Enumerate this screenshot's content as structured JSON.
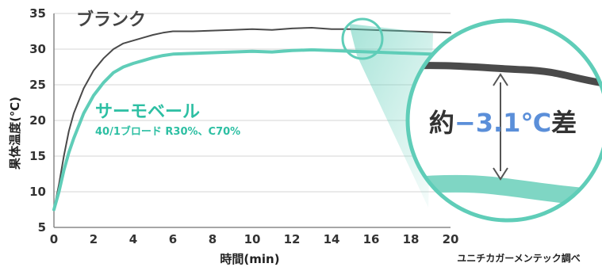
{
  "chart_data": {
    "type": "line",
    "xlabel": "時間(min)",
    "ylabel": "果体温度(℃)",
    "xlim": [
      0,
      20
    ],
    "ylim": [
      5,
      35
    ],
    "x_ticks": [
      "0",
      "2",
      "4",
      "6",
      "8",
      "10",
      "12",
      "14",
      "16",
      "18",
      "20"
    ],
    "y_ticks": [
      "5",
      "10",
      "15",
      "20",
      "25",
      "30",
      "35"
    ],
    "grid": true,
    "series": [
      {
        "name": "ブランク",
        "color": "#4a4a4a",
        "x": [
          0,
          0.25,
          0.5,
          0.75,
          1,
          1.5,
          2,
          2.5,
          3,
          3.5,
          4,
          4.5,
          5,
          5.5,
          6,
          7,
          8,
          9,
          10,
          11,
          12,
          13,
          14,
          15,
          16,
          17,
          18,
          19,
          20
        ],
        "values": [
          7.5,
          11,
          15,
          18.5,
          21,
          24.5,
          27,
          28.7,
          30,
          30.8,
          31.2,
          31.6,
          32,
          32.3,
          32.5,
          32.5,
          32.6,
          32.7,
          32.8,
          32.7,
          32.9,
          33.0,
          32.8,
          32.8,
          32.7,
          32.6,
          32.5,
          32.4,
          32.3
        ]
      },
      {
        "name": "サーモベール",
        "detail": "40/1ブロード R30%、C70%",
        "color": "#5fcdb8",
        "x": [
          0,
          0.25,
          0.5,
          0.75,
          1,
          1.5,
          2,
          2.5,
          3,
          3.5,
          4,
          4.5,
          5,
          5.5,
          6,
          7,
          8,
          9,
          10,
          11,
          12,
          13,
          14,
          15,
          16,
          17,
          18,
          19,
          20
        ],
        "values": [
          7.5,
          10,
          13,
          15.5,
          17.5,
          21,
          23.5,
          25.3,
          26.7,
          27.5,
          28,
          28.4,
          28.8,
          29.1,
          29.3,
          29.4,
          29.5,
          29.6,
          29.7,
          29.6,
          29.8,
          29.9,
          29.8,
          29.7,
          29.6,
          29.5,
          29.4,
          29.3,
          29.2
        ]
      }
    ],
    "annotation": {
      "prefix": "約",
      "value": "−3.1",
      "unit": "℃",
      "suffix": "差"
    },
    "source": "ユニチカガーメンテック調べ"
  },
  "colors": {
    "blank": "#4a4a4a",
    "thermo": "#5fcdb8",
    "accent_text": "#2dbfa3",
    "callout_number": "#5b8fd9",
    "grid": "#d6d6d6"
  }
}
